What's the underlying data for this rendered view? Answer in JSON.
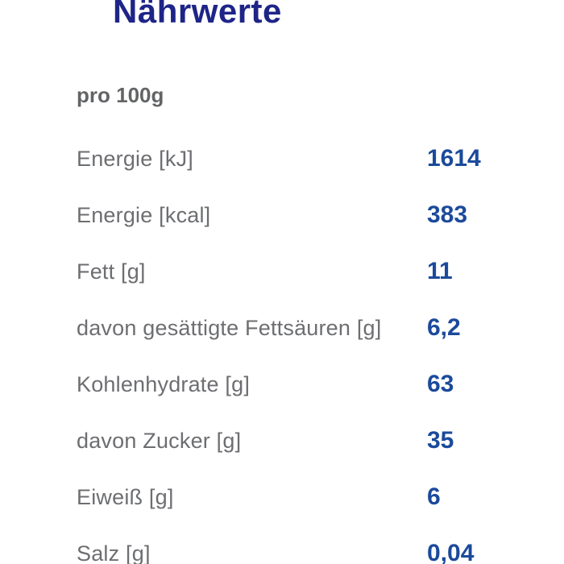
{
  "page": {
    "title": "Nährwerte",
    "serving_label": "pro 100g"
  },
  "nutrition_table": {
    "rows": [
      {
        "label": "Energie [kJ]",
        "value": "1614"
      },
      {
        "label": "Energie [kcal]",
        "value": "383"
      },
      {
        "label": "Fett [g]",
        "value": "11"
      },
      {
        "label": "davon gesättigte Fettsäuren [g]",
        "value": "6,2"
      },
      {
        "label": "Kohlenhydrate [g]",
        "value": "63"
      },
      {
        "label": "davon Zucker [g]",
        "value": "35"
      },
      {
        "label": "Eiweiß [g]",
        "value": "6"
      },
      {
        "label": "Salz [g]",
        "value": "0,04"
      }
    ]
  },
  "colors": {
    "background": "#ffffff",
    "title_navy": "#1e2587",
    "value_blue": "#1b4a9b",
    "label_gray": "#6d6e71",
    "serving_gray": "#636466"
  }
}
